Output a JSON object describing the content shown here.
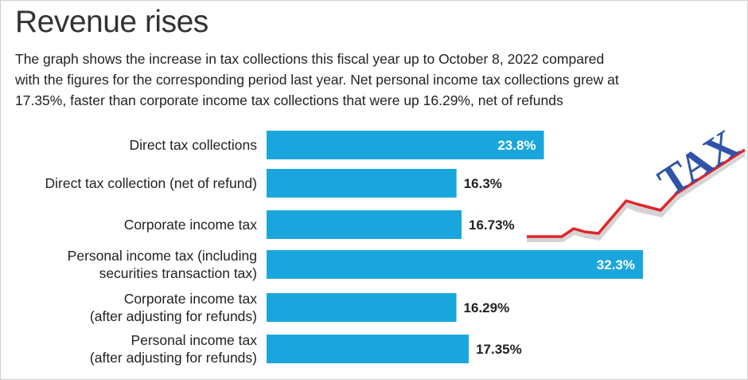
{
  "title": "Revenue rises",
  "subtitle_lines": [
    "The graph shows the increase in tax collections this fiscal year up to October 8, 2022 compared",
    "with the figures for the corresponding period last year. Net personal income tax collections grew at",
    "17.35%, faster than corporate income tax collections that were up 16.29%, net of refunds"
  ],
  "chart_data": {
    "type": "bar",
    "orientation": "horizontal",
    "unit": "%",
    "categories": [
      [
        "Direct tax collections"
      ],
      [
        "Direct tax collection (net of refund)"
      ],
      [
        "Corporate income tax"
      ],
      [
        "Personal income tax (including",
        "securities transaction tax)"
      ],
      [
        "Corporate income tax",
        "(after adjusting for refunds)"
      ],
      [
        "Personal income tax",
        "(after adjusting for refunds)"
      ]
    ],
    "values": [
      23.8,
      16.3,
      16.73,
      32.3,
      16.29,
      17.35
    ],
    "value_labels": [
      "23.8%",
      "16.3%",
      "16.73%",
      "32.3%",
      "16.29%",
      "17.35%"
    ],
    "bar_color": "#1aa6dc"
  },
  "decoration": {
    "tax_word": "TAX",
    "tax_word_color": "#2f53a8",
    "trend_line_color": "#e0262b"
  }
}
